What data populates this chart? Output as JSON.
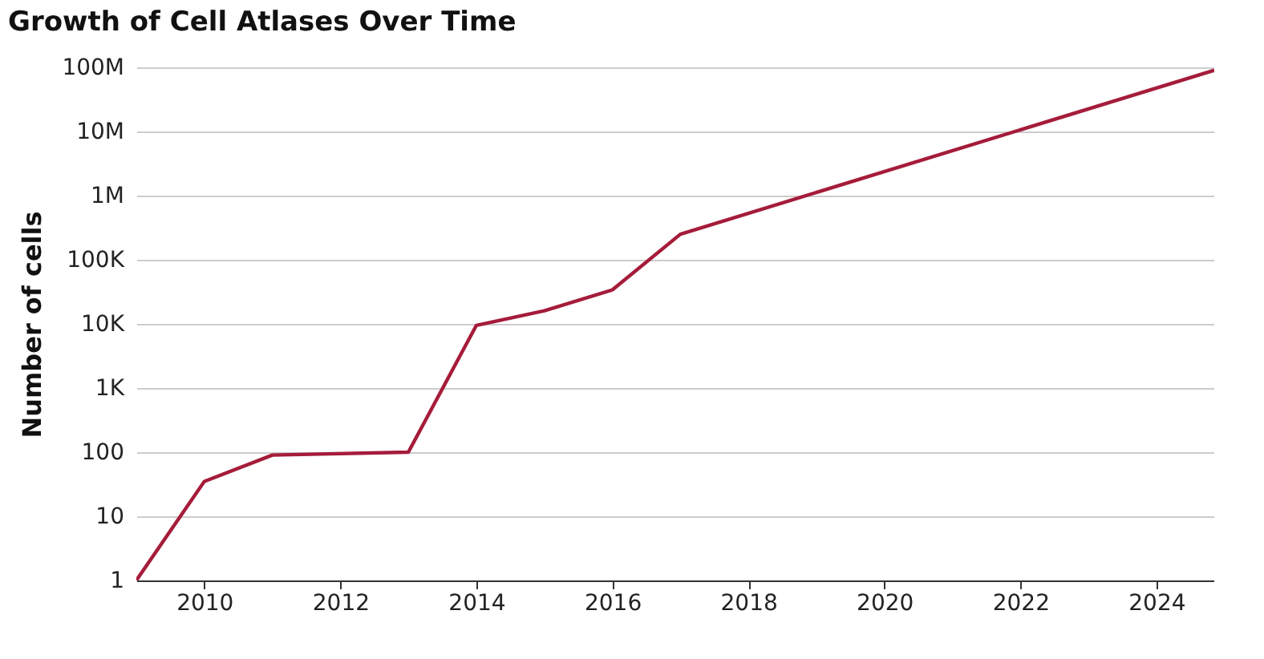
{
  "chart_data": {
    "type": "line",
    "title": "Growth of Cell Atlases Over Time",
    "ylabel": "Number of cells",
    "x": [
      2009,
      2010,
      2011,
      2013,
      2014,
      2015,
      2016,
      2017,
      2024.85
    ],
    "series": [
      {
        "color": "#a51c3a",
        "values": [
          1,
          35,
          90,
          100,
          9500,
          16000,
          34000,
          250000,
          90000000
        ]
      }
    ],
    "xlim": [
      2009,
      2024.85
    ],
    "xticks": [
      2010,
      2012,
      2014,
      2016,
      2018,
      2020,
      2022,
      2024
    ],
    "ylim": [
      1,
      100000000
    ],
    "yticks": [
      1,
      10,
      100,
      {
        "value": 1000,
        "label": "1K"
      },
      {
        "value": 10000,
        "label": "10K"
      },
      {
        "value": 100000,
        "label": "100K"
      },
      {
        "value": 1000000,
        "label": "1M"
      },
      {
        "value": 10000000,
        "label": "10M"
      },
      {
        "value": 100000000,
        "label": "100M"
      }
    ],
    "log": "y",
    "grid": "y",
    "legend": false,
    "marker": "none",
    "line_style": "solid"
  }
}
